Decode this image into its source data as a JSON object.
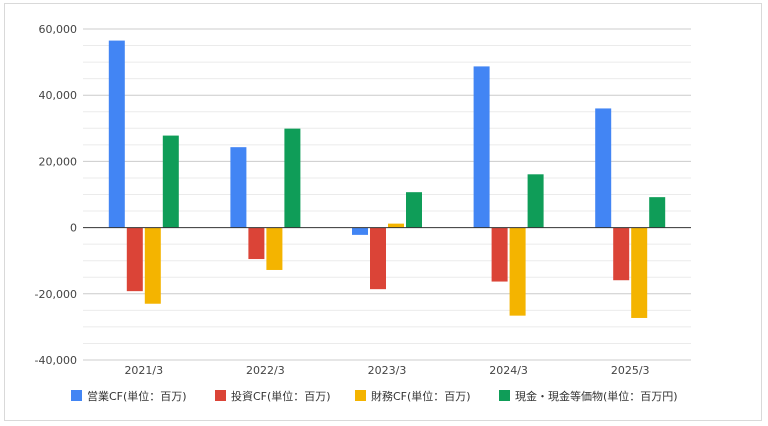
{
  "chart_data": {
    "type": "bar",
    "title": "",
    "xlabel": "",
    "ylabel": "",
    "categories": [
      "2021/3",
      "2022/3",
      "2023/3",
      "2024/3",
      "2025/3"
    ],
    "ylim": [
      -40000,
      60000
    ],
    "yticks": [
      -40000,
      -20000,
      0,
      20000,
      40000,
      60000
    ],
    "ytick_labels": [
      "-40,000",
      "-20,000",
      "0",
      "20,000",
      "40,000",
      "60,000"
    ],
    "grid": true,
    "legend_position": "bottom",
    "series": [
      {
        "name": "営業CF(単位：百万)",
        "color": "#4285F4",
        "values": [
          56500,
          24300,
          -2200,
          48700,
          36000
        ]
      },
      {
        "name": "投資CF(単位：百万)",
        "color": "#DB4437",
        "values": [
          -19200,
          -9500,
          -18600,
          -16300,
          -15900
        ]
      },
      {
        "name": "財務CF(単位：百万)",
        "color": "#F4B400",
        "values": [
          -23000,
          -12800,
          1200,
          -26600,
          -27300
        ]
      },
      {
        "name": "現金・現金等価物(単位：百万円)",
        "color": "#0F9D58",
        "values": [
          27800,
          29900,
          10700,
          16100,
          9200
        ]
      }
    ]
  }
}
